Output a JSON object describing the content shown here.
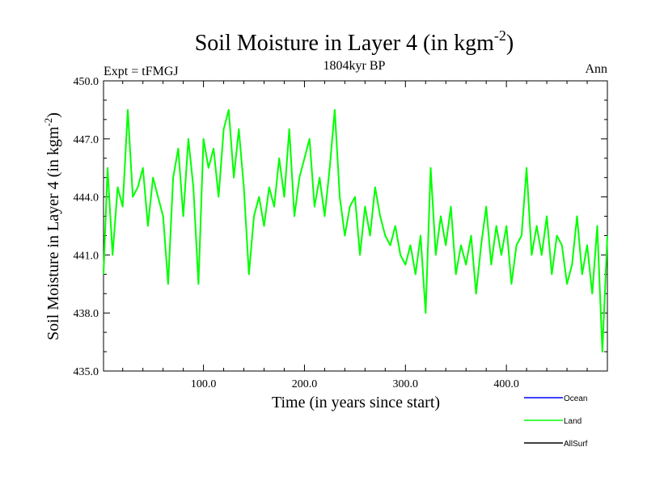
{
  "chart_data": {
    "type": "line",
    "title_main": "Soil Moisture in Layer 4 (in kgm",
    "title_sup": "-2",
    "title_close": ")",
    "subtitle": "1804kyr BP",
    "left_label": "Expt = tFMGJ",
    "right_label": "Ann",
    "xlabel": "Time (in years since start)",
    "ylabel_main": "Soil Moisture in Layer 4 (in kgm",
    "ylabel_sup": "-2",
    "ylabel_close": ")",
    "xlim": [
      1,
      500
    ],
    "ylim": [
      435.0,
      450.0
    ],
    "x_ticks": [
      100,
      200,
      300,
      400
    ],
    "x_tick_labels": [
      "100.0",
      "200.0",
      "300.0",
      "400.0"
    ],
    "y_ticks": [
      435,
      438,
      441,
      444,
      447,
      450
    ],
    "y_tick_labels": [
      "435.0",
      "438.0",
      "441.0",
      "444.0",
      "447.0",
      "450.0"
    ],
    "legend": [
      {
        "name": "Ocean",
        "color": "#0000ff"
      },
      {
        "name": "Land",
        "color": "#00ff00"
      },
      {
        "name": "AllSurf",
        "color": "#000000"
      }
    ],
    "series": [
      {
        "name": "Land",
        "color": "#00ff00",
        "x": [
          1,
          5,
          10,
          15,
          20,
          25,
          30,
          35,
          40,
          45,
          50,
          55,
          60,
          65,
          70,
          75,
          80,
          85,
          90,
          95,
          100,
          105,
          110,
          115,
          120,
          125,
          130,
          135,
          140,
          145,
          150,
          155,
          160,
          165,
          170,
          175,
          180,
          185,
          190,
          195,
          200,
          205,
          210,
          215,
          220,
          225,
          230,
          235,
          240,
          245,
          250,
          255,
          260,
          265,
          270,
          275,
          280,
          285,
          290,
          295,
          300,
          305,
          310,
          315,
          320,
          325,
          330,
          335,
          340,
          345,
          350,
          355,
          360,
          365,
          370,
          375,
          380,
          385,
          390,
          395,
          400,
          405,
          410,
          415,
          420,
          425,
          430,
          435,
          440,
          445,
          450,
          455,
          460,
          465,
          470,
          475,
          480,
          485,
          490,
          495,
          500
        ],
        "values": [
          440.0,
          445.5,
          441.0,
          444.5,
          443.5,
          448.5,
          444.0,
          444.5,
          445.5,
          442.5,
          445.0,
          444.0,
          443.0,
          439.5,
          445.0,
          446.5,
          443.0,
          447.0,
          444.5,
          439.5,
          447.0,
          445.5,
          446.5,
          444.0,
          447.5,
          448.5,
          445.0,
          447.5,
          444.5,
          440.0,
          443.0,
          444.0,
          442.5,
          444.5,
          443.5,
          446.0,
          444.0,
          447.5,
          443.0,
          445.0,
          446.0,
          447.0,
          443.5,
          445.0,
          443.0,
          445.5,
          448.5,
          444.0,
          442.0,
          443.5,
          444.0,
          441.0,
          443.5,
          442.0,
          444.5,
          443.0,
          442.0,
          441.5,
          442.5,
          441.0,
          440.5,
          441.5,
          440.0,
          442.0,
          438.0,
          445.5,
          441.0,
          443.0,
          441.5,
          443.5,
          440.0,
          441.5,
          440.5,
          442.0,
          439.0,
          441.5,
          443.5,
          440.5,
          442.5,
          441.0,
          442.5,
          439.5,
          441.5,
          442.0,
          445.5,
          441.0,
          442.5,
          441.0,
          443.0,
          440.0,
          442.0,
          441.5,
          439.5,
          440.5,
          443.0,
          440.0,
          441.5,
          439.0,
          442.5,
          436.0,
          442.0
        ]
      }
    ]
  }
}
